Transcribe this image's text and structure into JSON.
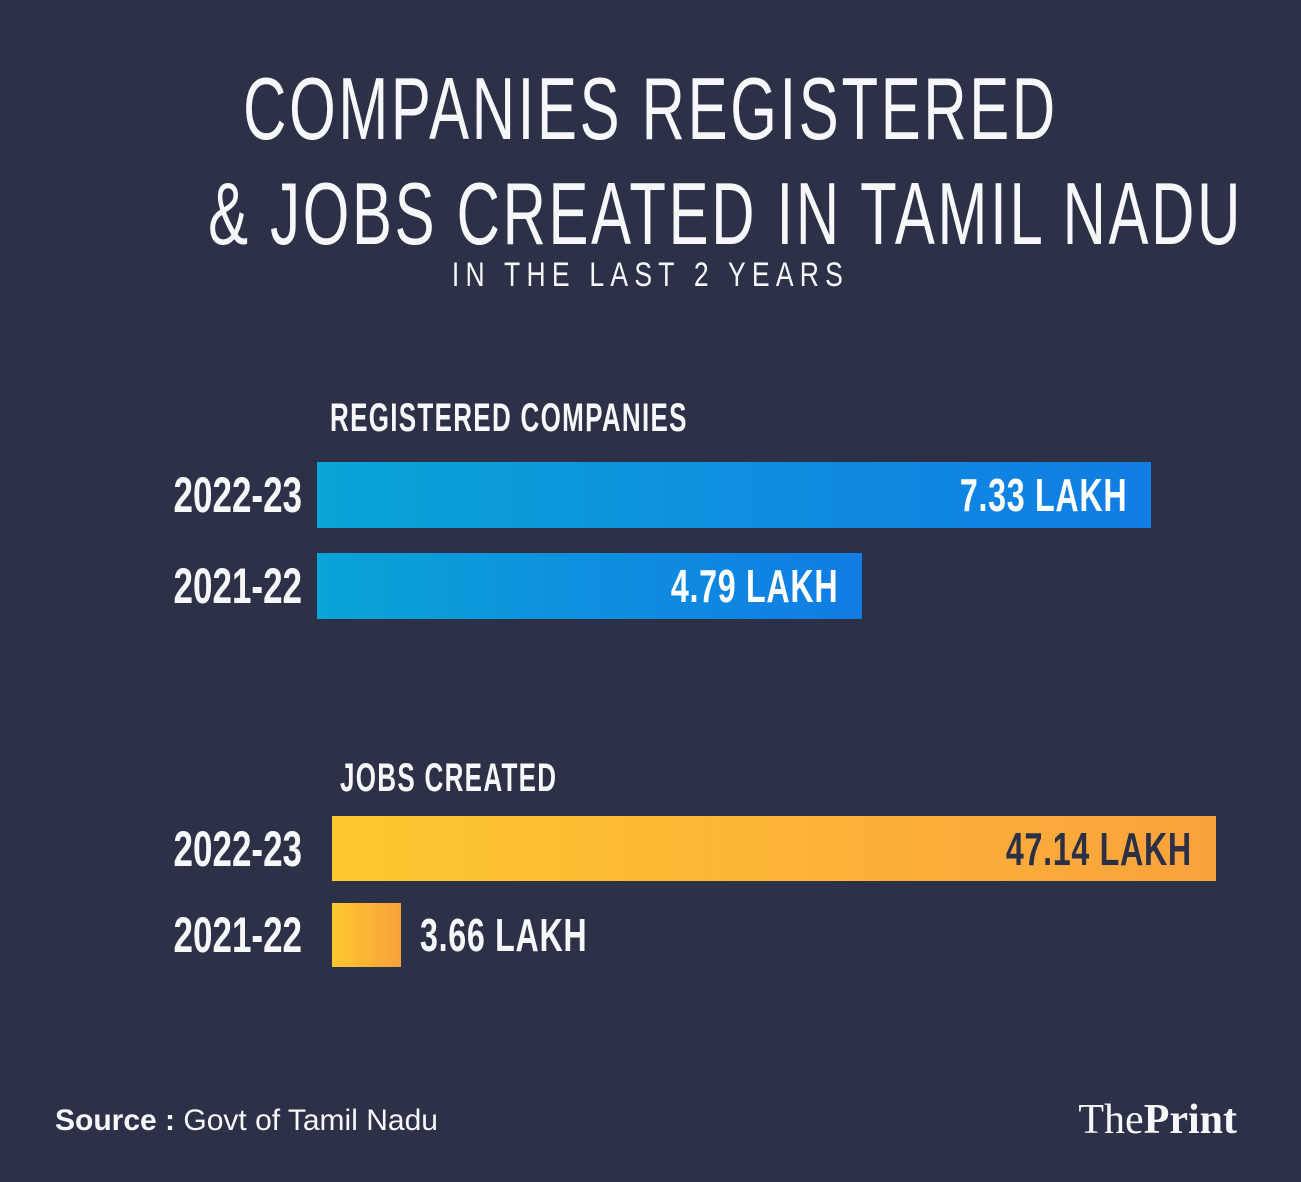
{
  "header": {
    "title_line1": "COMPANIES REGISTERED",
    "title_line2": "& JOBS CREATED IN TAMIL NADU",
    "subtitle": "IN THE LAST 2 YEARS"
  },
  "chart_data": [
    {
      "type": "bar",
      "orientation": "horizontal",
      "title": "REGISTERED COMPANIES",
      "categories": [
        "2022-23",
        "2021-22"
      ],
      "values": [
        7.33,
        4.79
      ],
      "unit": "lakh",
      "value_labels": [
        "7.33 LAKH",
        "4.79 LAKH"
      ],
      "value_label_position": [
        "inside-right",
        "inside-right"
      ],
      "bar_gradient": [
        "#0AA4D8",
        "#117CE4"
      ],
      "value_label_color_inside": "#FFFFFF",
      "xlim": [
        0,
        7.33
      ],
      "grid": false,
      "legend": false
    },
    {
      "type": "bar",
      "orientation": "horizontal",
      "title": "JOBS CREATED",
      "categories": [
        "2022-23",
        "2021-22"
      ],
      "values": [
        47.14,
        3.66
      ],
      "unit": "lakh",
      "value_labels": [
        "47.14 LAKH",
        "3.66 LAKH"
      ],
      "value_label_position": [
        "inside-right",
        "outside-right"
      ],
      "bar_gradient": [
        "#FDC72F",
        "#F9A23C"
      ],
      "value_label_color_inside": "#2B3047",
      "xlim": [
        0,
        47.14
      ],
      "grid": false,
      "legend": false
    }
  ],
  "footer": {
    "source_label": "Source :",
    "source_text": "Govt of Tamil Nadu",
    "brand_regular": "The",
    "brand_bold": "Print"
  },
  "colors": {
    "background": "#2D3148",
    "text": "#F6F7F9"
  }
}
